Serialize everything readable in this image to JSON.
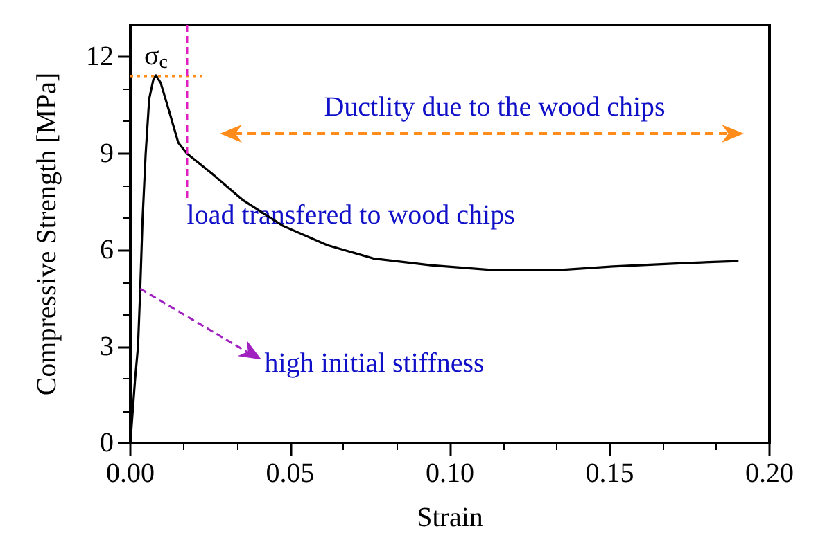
{
  "chart_data": {
    "type": "line",
    "xlabel": "Strain",
    "ylabel": "Compressive Strength [MPa]",
    "x": [
      0,
      0.0015,
      0.0024,
      0.0031,
      0.0038,
      0.0048,
      0.0059,
      0.0072,
      0.008,
      0.0095,
      0.0122,
      0.015,
      0.0177,
      0.0254,
      0.035,
      0.0478,
      0.0617,
      0.076,
      0.094,
      0.1135,
      0.134,
      0.151,
      0.172,
      0.19
    ],
    "series": [
      {
        "color": "#000000",
        "values": [
          0,
          2.0,
          3.0,
          4.8,
          6.9,
          9.0,
          10.7,
          11.3,
          11.43,
          11.2,
          10.3,
          9.34,
          9.0,
          8.39,
          7.57,
          6.75,
          6.15,
          5.74,
          5.53,
          5.38,
          5.38,
          5.49,
          5.59,
          5.66
        ]
      }
    ],
    "xlim": [
      0,
      0.2
    ],
    "xticks": [
      {
        "value": 0,
        "label": "0.00"
      },
      {
        "value": 0.05,
        "label": "0.05"
      },
      {
        "value": 0.1,
        "label": "0.10"
      },
      {
        "value": 0.15,
        "label": "0.15"
      },
      {
        "value": 0.2,
        "label": "0.20"
      }
    ],
    "ylim": [
      0,
      13
    ],
    "yticks": [
      0,
      3,
      6,
      9,
      12
    ],
    "grid": false,
    "marker": "none",
    "line_style": "solid",
    "ref_lines": [
      {
        "axis": "y",
        "value": 11.43,
        "label": "σ$_{c}$",
        "color": "#ff8c1a",
        "line_style": "dotted"
      },
      {
        "axis": "x",
        "value": 0.0177,
        "label": "load transfered to wood chips",
        "color": "#e020c0",
        "line_style": "dashed"
      }
    ],
    "annotations": [
      "Ductlity due to the wood chips",
      {
        "text": "high initial stiffness",
        "x": 0.0031,
        "y": 4.8
      }
    ]
  }
}
